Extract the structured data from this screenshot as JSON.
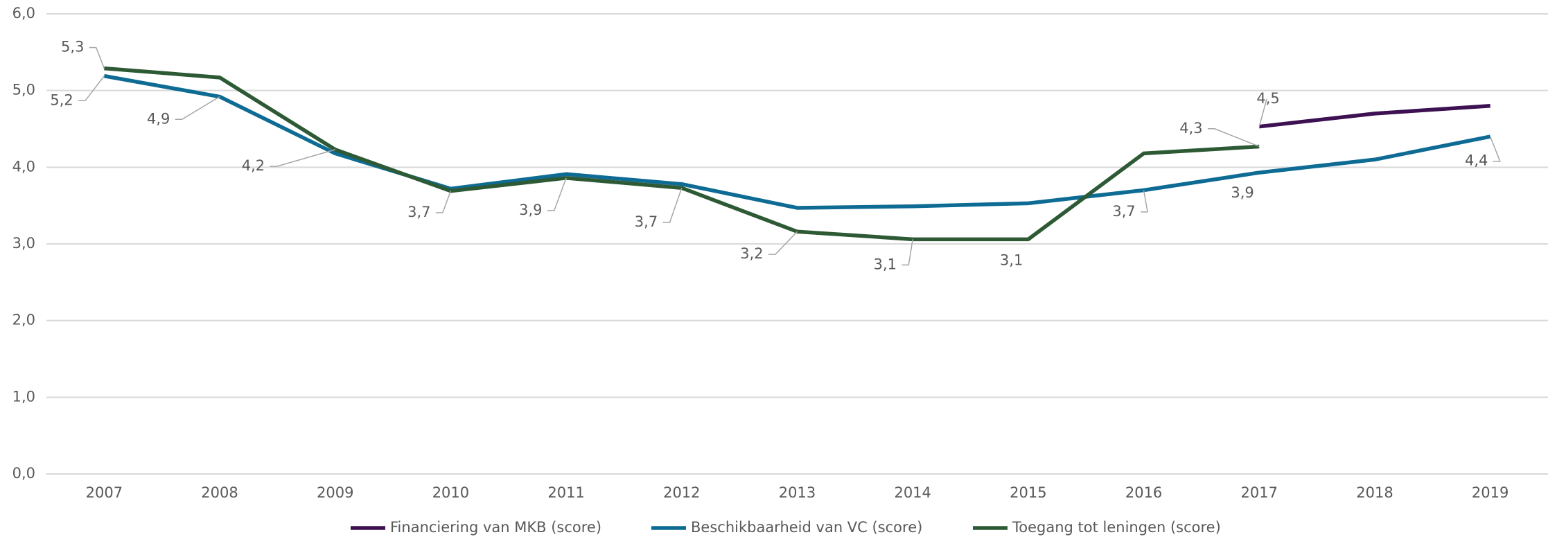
{
  "chart_data": {
    "type": "line",
    "categories": [
      "2007",
      "2008",
      "2009",
      "2010",
      "2011",
      "2012",
      "2013",
      "2014",
      "2015",
      "2016",
      "2017",
      "2018",
      "2019"
    ],
    "series": [
      {
        "name": "Financiering van MKB (score)",
        "color": "#3d1152",
        "values": [
          null,
          null,
          null,
          null,
          null,
          null,
          null,
          null,
          null,
          null,
          4.53,
          4.7,
          4.8
        ],
        "value_labels": [
          null,
          null,
          null,
          null,
          null,
          null,
          null,
          null,
          null,
          null,
          "4,5",
          null,
          null
        ]
      },
      {
        "name": "Beschikbaarheid van VC (score)",
        "color": "#0e6b94",
        "values": [
          5.19,
          4.92,
          4.18,
          3.72,
          3.91,
          3.78,
          3.47,
          3.49,
          3.53,
          3.7,
          3.93,
          4.1,
          4.4
        ],
        "value_labels": [
          "5,2",
          "4,9",
          null,
          null,
          null,
          null,
          null,
          null,
          null,
          "3,7",
          "3,9",
          null,
          "4,4"
        ]
      },
      {
        "name": "Toegang tot leningen (score)",
        "color": "#2d5a35",
        "values": [
          5.29,
          5.17,
          4.23,
          3.69,
          3.86,
          3.73,
          3.16,
          3.06,
          3.06,
          4.18,
          4.27,
          null,
          null
        ],
        "value_labels": [
          "5,3",
          null,
          "4,2",
          "3,7",
          "3,9",
          "3,7",
          "3,2",
          "3,1",
          "3,1",
          null,
          "4,3",
          null,
          null
        ]
      }
    ],
    "ylim": [
      0,
      6
    ],
    "yticks": [
      {
        "value": 0,
        "label": "0,0"
      },
      {
        "value": 1,
        "label": "1,0"
      },
      {
        "value": 2,
        "label": "2,0"
      },
      {
        "value": 3,
        "label": "3,0"
      },
      {
        "value": 4,
        "label": "4,0"
      },
      {
        "value": 5,
        "label": "5,0"
      },
      {
        "value": 6,
        "label": "6,0"
      }
    ],
    "grid": true,
    "legend": "bottom"
  }
}
